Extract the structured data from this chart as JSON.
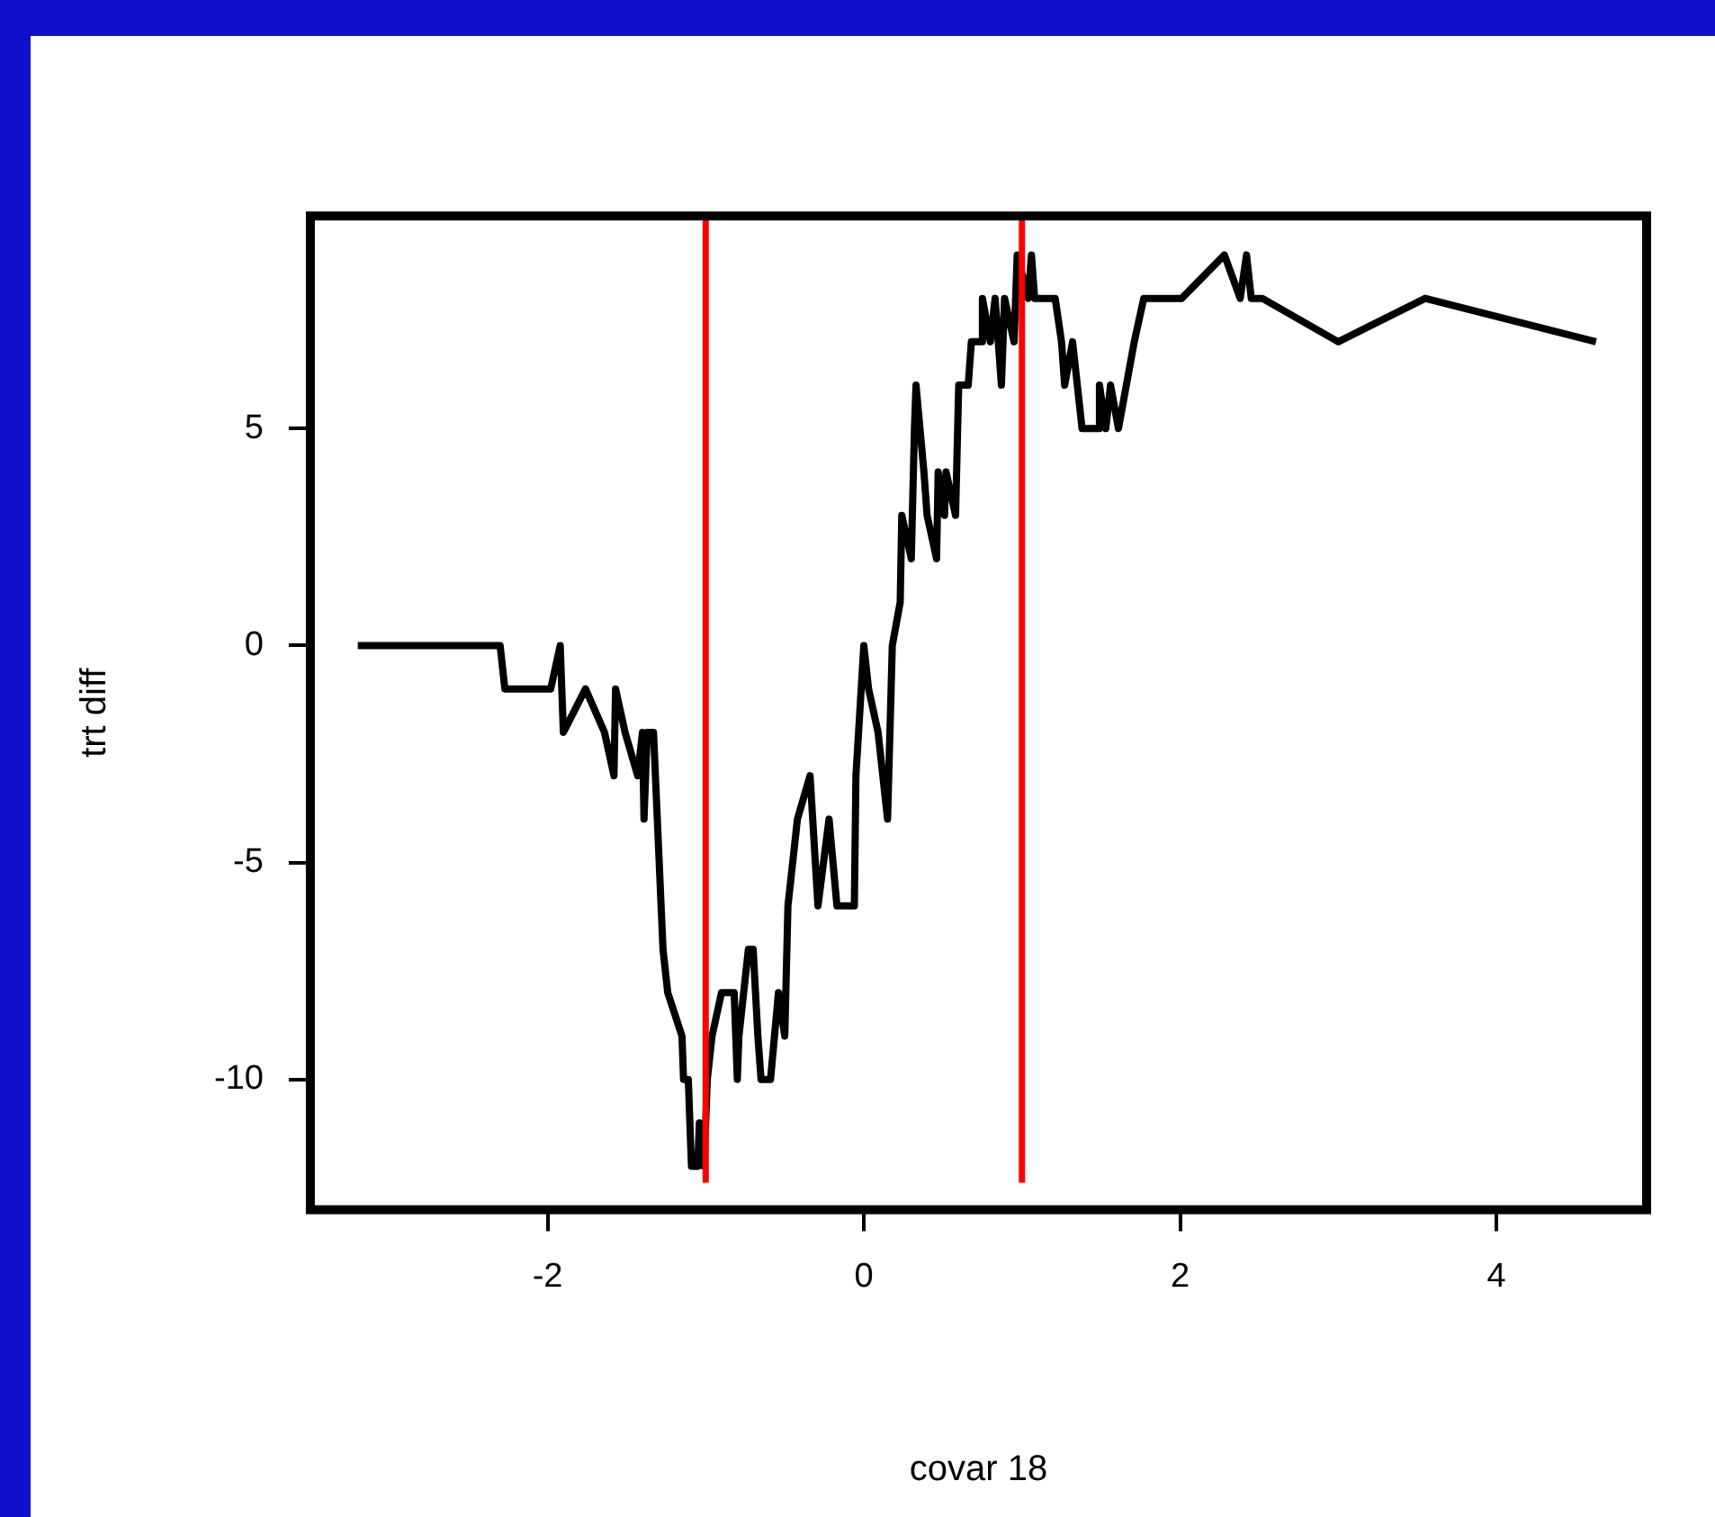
{
  "chart_data": {
    "type": "line",
    "xlabel": "covar 18",
    "ylabel": "trt diff",
    "x": [
      -3.2,
      -2.3,
      -2.27,
      -1.98,
      -1.92,
      -1.9,
      -1.76,
      -1.64,
      -1.58,
      -1.57,
      -1.51,
      -1.43,
      -1.4,
      -1.39,
      -1.37,
      -1.33,
      -1.27,
      -1.24,
      -1.15,
      -1.14,
      -1.11,
      -1.09,
      -1.05,
      -1.04,
      -1.01,
      -0.99,
      -0.96,
      -0.9,
      -0.82,
      -0.8,
      -0.79,
      -0.73,
      -0.7,
      -0.67,
      -0.65,
      -0.59,
      -0.54,
      -0.5,
      -0.48,
      -0.42,
      -0.34,
      -0.29,
      -0.22,
      -0.17,
      -0.06,
      -0.05,
      0,
      0.03,
      0.09,
      0.15,
      0.18,
      0.23,
      0.24,
      0.3,
      0.32,
      0.33,
      0.38,
      0.4,
      0.46,
      0.47,
      0.51,
      0.52,
      0.58,
      0.6,
      0.66,
      0.68,
      0.74,
      0.75,
      0.8,
      0.83,
      0.87,
      0.89,
      0.95,
      0.97,
      1.04,
      1.06,
      1.08,
      1.21,
      1.25,
      1.27,
      1.32,
      1.35,
      1.38,
      1.48,
      1.49,
      1.53,
      1.56,
      1.61,
      1.71,
      1.77,
      2.01,
      2.28,
      2.38,
      2.42,
      2.45,
      2.52,
      3.0,
      3.55,
      4.63
    ],
    "series": [
      {
        "color": "#000000",
        "values": [
          0,
          0,
          -1,
          -1,
          0,
          -2,
          -1,
          -2,
          -3,
          -1,
          -2,
          -3,
          -2,
          -4,
          -2,
          -2,
          -7,
          -8,
          -9,
          -10,
          -10,
          -12,
          -12,
          -11,
          -12,
          -10,
          -9,
          -8,
          -8,
          -10,
          -9,
          -7,
          -7,
          -9,
          -10,
          -10,
          -8,
          -9,
          -6,
          -4,
          -3,
          -6,
          -4,
          -6,
          -6,
          -3,
          0,
          -1,
          -2,
          -4,
          0,
          1,
          3,
          2,
          5,
          6,
          4,
          3,
          2,
          4,
          3,
          4,
          3,
          6,
          6,
          7,
          7,
          8,
          7,
          8,
          6,
          8,
          7,
          9,
          8,
          9,
          8,
          8,
          7,
          6,
          7,
          6,
          5,
          5,
          6,
          5,
          6,
          5,
          7,
          8,
          8,
          9,
          8,
          9,
          8,
          8,
          7,
          8,
          7
        ]
      }
    ],
    "xlim": [
      -3.5,
      4.95
    ],
    "ylim": [
      -13,
      9.9
    ],
    "xticks": [
      -2,
      0,
      2,
      4
    ],
    "yticks": [
      -10,
      -5,
      0,
      5
    ],
    "ref_lines": [
      {
        "axis": "x",
        "value": -1,
        "color": "#ff0000"
      },
      {
        "axis": "x",
        "value": 1,
        "color": "#ff0000"
      }
    ],
    "grid": false,
    "legend": false,
    "marker": "none",
    "line_style": "solid"
  }
}
